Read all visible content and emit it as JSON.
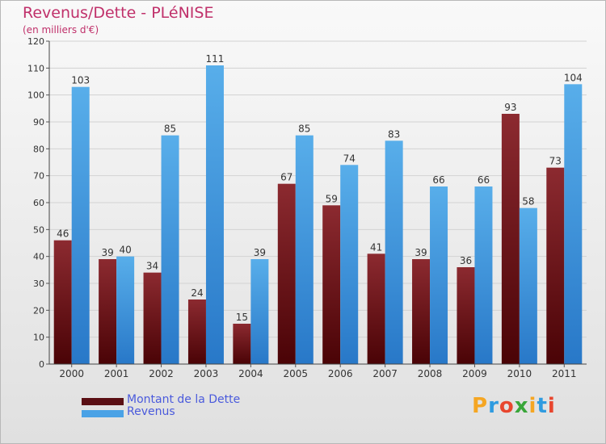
{
  "header": {
    "title": "Revenus/Dette - PLéNISE",
    "subtitle": "(en milliers d'€)"
  },
  "chart_data": {
    "type": "bar",
    "categories": [
      "2000",
      "2001",
      "2002",
      "2003",
      "2004",
      "2005",
      "2006",
      "2007",
      "2008",
      "2009",
      "2010",
      "2011"
    ],
    "series": [
      {
        "name": "Montant de la Dette",
        "values": [
          46,
          39,
          34,
          24,
          15,
          67,
          59,
          41,
          39,
          36,
          93,
          73
        ],
        "color": "#7a1a20"
      },
      {
        "name": "Revenus",
        "values": [
          103,
          40,
          85,
          111,
          39,
          85,
          74,
          83,
          66,
          66,
          58,
          104
        ],
        "color": "#4aa2e6"
      }
    ],
    "ylim": [
      0,
      120
    ],
    "yticks": [
      0,
      10,
      20,
      30,
      40,
      50,
      60,
      70,
      80,
      90,
      100,
      110,
      120
    ],
    "grid": true,
    "legend_position": "bottom-left"
  },
  "legend": {
    "items": [
      {
        "label": "Montant de la Dette",
        "color": "#5a0f14"
      },
      {
        "label": "Revenus",
        "color": "#4aa2e6"
      }
    ]
  },
  "logo": {
    "letters": [
      "P",
      "r",
      "o",
      "x",
      "i",
      "t",
      "i"
    ],
    "colors": [
      "#f5a623",
      "#2f9be0",
      "#e8462e",
      "#3aa63a",
      "#f5a623",
      "#2f9be0",
      "#e8462e"
    ]
  }
}
